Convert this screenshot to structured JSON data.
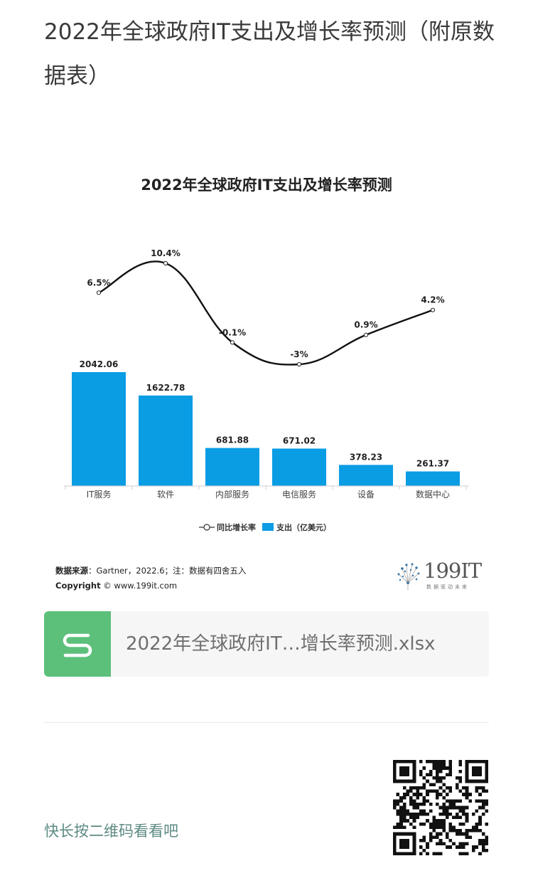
{
  "article": {
    "title": "2022年全球政府IT支出及增长率预测（附原数据表）"
  },
  "chart_data": {
    "type": "bar",
    "title": "2022年全球政府IT支出及增长率预测",
    "categories": [
      "IT服务",
      "软件",
      "内部服务",
      "电信服务",
      "设备",
      "数据中心"
    ],
    "series": [
      {
        "name": "支出（亿美元）",
        "type": "bar",
        "values": [
          2042.06,
          1622.78,
          681.88,
          671.02,
          378.23,
          261.37
        ],
        "labels": [
          "2042.06",
          "1622.78",
          "681.88",
          "671.02",
          "378.23",
          "261.37"
        ],
        "color": "#0a9de4"
      },
      {
        "name": "同比增长率",
        "type": "line",
        "values": [
          6.5,
          10.4,
          -0.1,
          -3,
          0.9,
          4.2
        ],
        "labels": [
          "6.5%",
          "10.4%",
          "-0.1%",
          "-3%",
          "0.9%",
          "4.2%"
        ],
        "color": "#111111"
      }
    ],
    "legend": {
      "position": "bottom",
      "line_label": "同比增长率",
      "bar_label": "支出（亿美元）"
    },
    "grid": false
  },
  "source": {
    "label": "数据来源",
    "text": "：Gartner，2022.6；注：数据有四舍五入",
    "copyright_label": "Copyright",
    "copyright_text": " © www.199it.com"
  },
  "logo": {
    "text": "199IT",
    "slogan": "数据驱动未来"
  },
  "attachment": {
    "file_name": "2022年全球政府IT…增长率预测.xlsx",
    "icon": "spreadsheet-s-icon",
    "color": "#5cc07b"
  },
  "footer": {
    "qr_hint": "快长按二维码看看吧"
  }
}
